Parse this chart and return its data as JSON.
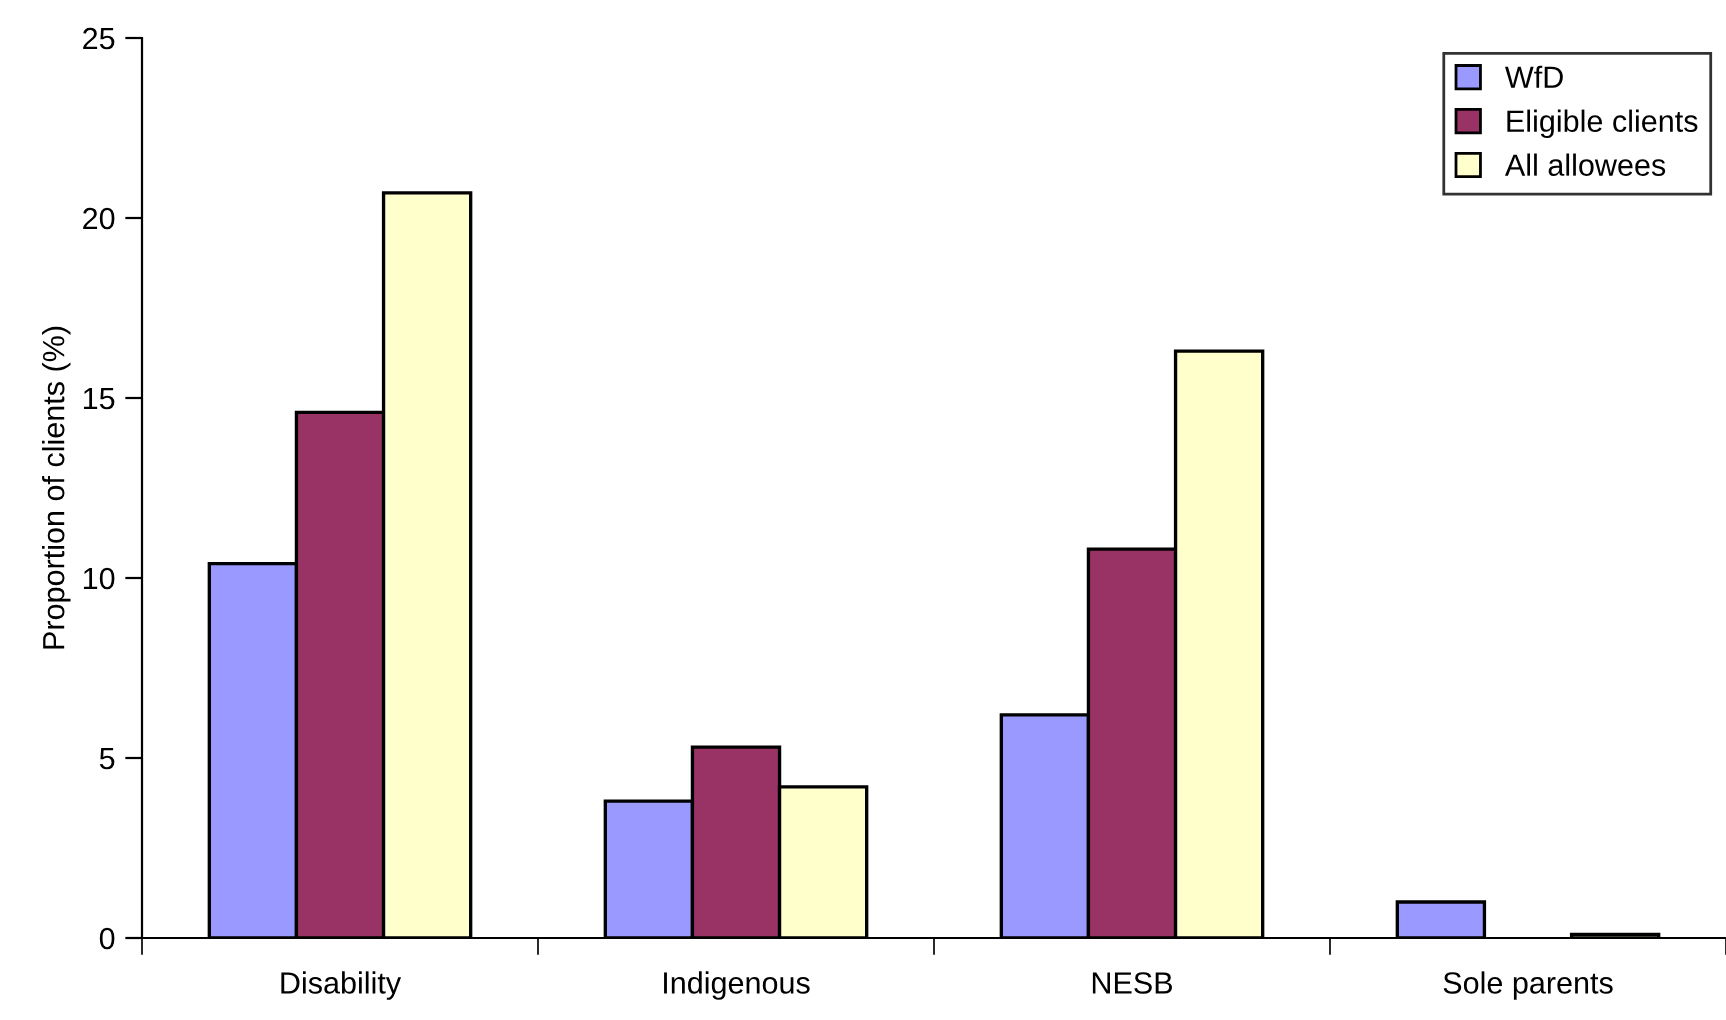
{
  "chart_data": {
    "type": "bar",
    "ylabel": "Proportion of clients (%)",
    "categories": [
      "Disability",
      "Indigenous",
      "NESB",
      "Sole parents"
    ],
    "series": [
      {
        "name": "WfD",
        "color": "#9999ff",
        "values": [
          10.4,
          3.8,
          6.2,
          1.0
        ]
      },
      {
        "name": "Eligible clients",
        "color": "#993366",
        "values": [
          14.6,
          5.3,
          10.8,
          null
        ]
      },
      {
        "name": "All allowees",
        "color": "#ffffcc",
        "values": [
          20.7,
          4.2,
          16.3,
          0.1
        ]
      }
    ],
    "ylim": [
      0,
      25
    ],
    "yticks": [
      0,
      5,
      10,
      15,
      20,
      25
    ],
    "grid": false,
    "legend": "top right"
  }
}
